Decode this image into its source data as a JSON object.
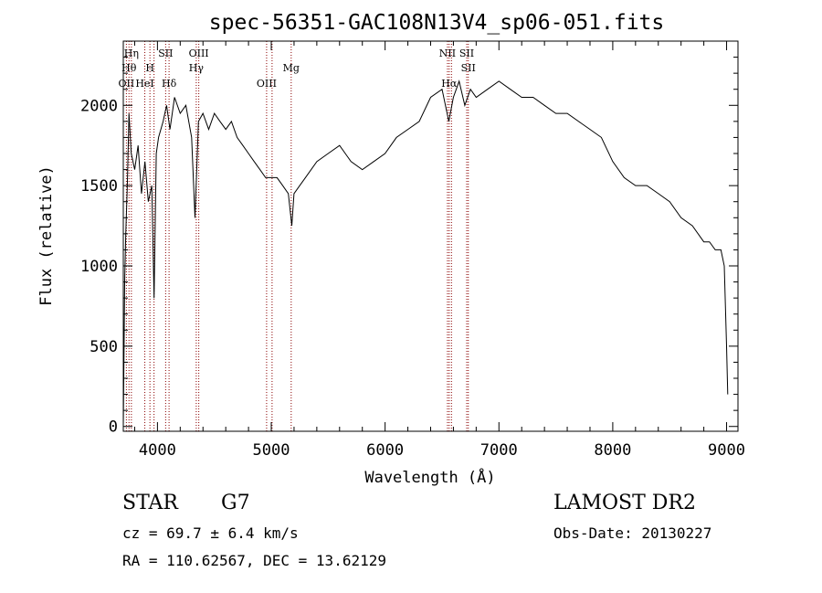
{
  "chart_data": {
    "type": "line",
    "title": "spec-56351-GAC108N13V4_sp06-051.fits",
    "xlabel": "Wavelength (Å)",
    "ylabel": "Flux (relative)",
    "xlim": [
      3700,
      9100
    ],
    "ylim": [
      -30,
      2400
    ],
    "xticks": [
      4000,
      5000,
      6000,
      7000,
      8000,
      9000
    ],
    "yticks": [
      0,
      500,
      1000,
      1500,
      2000
    ],
    "xtick_labels": [
      "4000",
      "5000",
      "6000",
      "7000",
      "8000",
      "9000"
    ],
    "ytick_labels": [
      "0",
      "500",
      "1000",
      "1500",
      "2000"
    ],
    "grid": false,
    "series": [
      {
        "x": [
          3700,
          3712,
          3722,
          3735,
          3750,
          3770,
          3800,
          3830,
          3860,
          3890,
          3920,
          3950,
          3970,
          3990,
          4010,
          4050,
          4080,
          4110,
          4150,
          4200,
          4250,
          4300,
          4330,
          4360,
          4400,
          4450,
          4500,
          4550,
          4600,
          4650,
          4700,
          4750,
          4800,
          4850,
          4900,
          4950,
          5000,
          5050,
          5100,
          5150,
          5180,
          5200,
          5250,
          5300,
          5400,
          5500,
          5600,
          5700,
          5800,
          5900,
          6000,
          6100,
          6200,
          6300,
          6400,
          6500,
          6560,
          6600,
          6650,
          6700,
          6750,
          6800,
          6900,
          7000,
          7100,
          7200,
          7300,
          7400,
          7500,
          7600,
          7700,
          7800,
          7900,
          8000,
          8100,
          8200,
          8300,
          8400,
          8500,
          8600,
          8700,
          8800,
          8850,
          8900,
          8950,
          8980,
          9000,
          9010
        ],
        "y": [
          0,
          900,
          1200,
          1500,
          1950,
          1700,
          1600,
          1750,
          1450,
          1650,
          1400,
          1500,
          800,
          1700,
          1800,
          1900,
          2000,
          1850,
          2050,
          1950,
          2000,
          1800,
          1300,
          1900,
          1950,
          1850,
          1950,
          1900,
          1850,
          1900,
          1800,
          1750,
          1700,
          1650,
          1600,
          1550,
          1550,
          1550,
          1500,
          1450,
          1250,
          1450,
          1500,
          1550,
          1650,
          1700,
          1750,
          1650,
          1600,
          1650,
          1700,
          1800,
          1850,
          1900,
          2050,
          2100,
          1900,
          2050,
          2150,
          2000,
          2100,
          2050,
          2100,
          2150,
          2100,
          2050,
          2050,
          2000,
          1950,
          1950,
          1900,
          1850,
          1800,
          1650,
          1550,
          1500,
          1500,
          1450,
          1400,
          1300,
          1250,
          1150,
          1150,
          1100,
          1100,
          1000,
          500,
          200
        ]
      }
    ],
    "lines": [
      {
        "wave": 3727,
        "label": "OII",
        "row": 2
      },
      {
        "wave": 3750,
        "label": "Hθ",
        "row": 1
      },
      {
        "wave": 3771,
        "label": "Hη",
        "row": 0
      },
      {
        "wave": 3889,
        "label": "HeI",
        "row": 2
      },
      {
        "wave": 3934,
        "label": "H",
        "row": 1
      },
      {
        "wave": 3970,
        "label": "",
        "row": 2
      },
      {
        "wave": 4072,
        "label": "SII",
        "row": 0
      },
      {
        "wave": 4102,
        "label": "Hδ",
        "row": 2
      },
      {
        "wave": 4341,
        "label": "Hγ",
        "row": 1
      },
      {
        "wave": 4363,
        "label": "OIII",
        "row": 0
      },
      {
        "wave": 4959,
        "label": "OIII",
        "row": 2
      },
      {
        "wave": 5007,
        "label": "",
        "row": 2
      },
      {
        "wave": 5175,
        "label": "Mg",
        "row": 1
      },
      {
        "wave": 6548,
        "label": "NII",
        "row": 0
      },
      {
        "wave": 6563,
        "label": "Hα",
        "row": 2
      },
      {
        "wave": 6583,
        "label": "",
        "row": 2
      },
      {
        "wave": 6717,
        "label": "SII",
        "row": 0
      },
      {
        "wave": 6731,
        "label": "SII",
        "row": 1
      }
    ]
  },
  "info": {
    "class": "STAR",
    "subclass": "G7",
    "survey": "LAMOST DR2",
    "cz": "cz = 69.7 ± 6.4 km/s",
    "obs_date": "Obs-Date: 20130227",
    "coords": "RA = 110.62567, DEC =  13.62129"
  },
  "colors": {
    "spectrum": "#000000",
    "emission_line": "#8b0000",
    "axis": "#000000"
  }
}
